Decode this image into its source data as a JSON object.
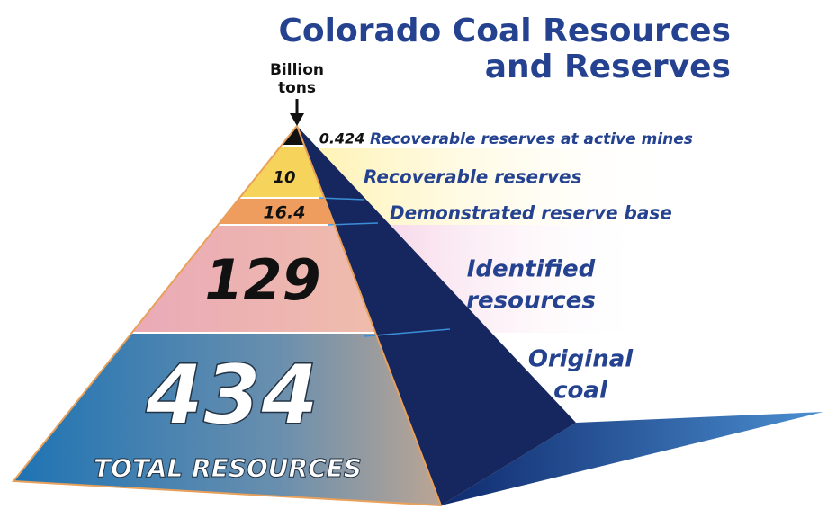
{
  "title": [
    "Colorado Coal Resources",
    "and Reserves"
  ],
  "unit": [
    "Billion",
    "tons"
  ],
  "layers": [
    {
      "value": 0.424,
      "label": [
        "Recoverable reserves at active mines"
      ]
    },
    {
      "value": 10,
      "label": [
        "Recoverable reserves"
      ]
    },
    {
      "value": 16.4,
      "label": [
        "Demonstrated reserve base"
      ]
    },
    {
      "value": 129,
      "label": [
        "Identified",
        "resources"
      ]
    },
    {
      "value": 434,
      "label": [
        "Original",
        "coal"
      ]
    }
  ],
  "total_label": "TOTAL RESOURCES"
}
